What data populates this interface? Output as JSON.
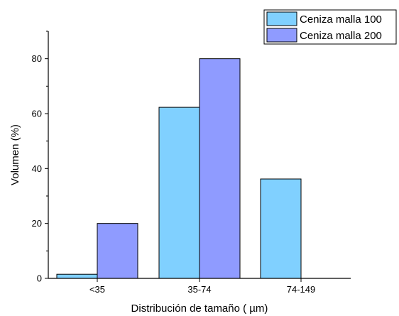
{
  "chart_data": {
    "type": "bar",
    "categories": [
      "<35",
      "35-74",
      "74-149"
    ],
    "series": [
      {
        "name": "Ceniza malla 100",
        "color": "#80d0ff",
        "values": [
          1.5,
          62.3,
          36.2
        ]
      },
      {
        "name": "Ceniza malla 200",
        "color": "#8f9bff",
        "values": [
          20,
          80,
          0
        ]
      }
    ],
    "xlabel": "Distribución de tamaño ( µm)",
    "ylabel": "Volumen (%)",
    "ylim": [
      0,
      90
    ],
    "yticks": [
      0,
      20,
      40,
      60,
      80
    ],
    "grid": false,
    "legend": "top-right"
  }
}
